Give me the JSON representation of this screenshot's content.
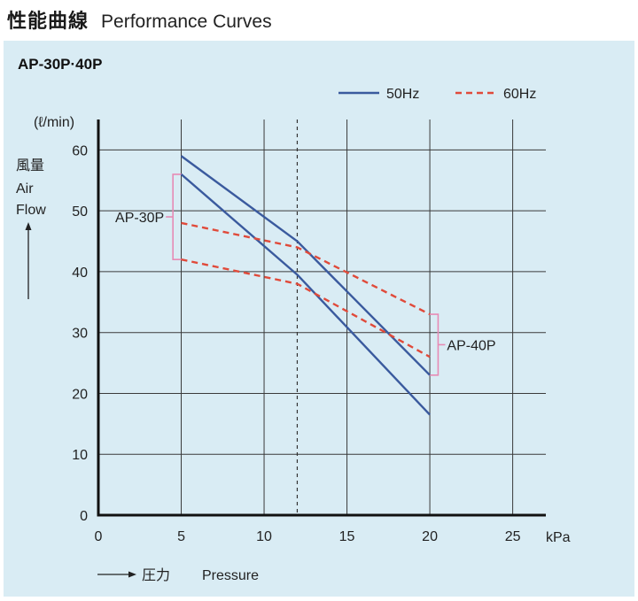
{
  "header": {
    "title_jp": "性能曲線",
    "title_en": "Performance Curves"
  },
  "chart_data": {
    "type": "line",
    "title": "AP-30P·40P",
    "xlabel_jp": "圧力",
    "xlabel_en": "Pressure",
    "x_unit": "kPa",
    "ylabel_jp": "風量",
    "ylabel_en_line1": "Air",
    "ylabel_en_line2": "Flow",
    "y_unit": "(ℓ/min)",
    "xlim": [
      0,
      27
    ],
    "ylim": [
      0,
      65
    ],
    "x_ticks": [
      0,
      5,
      10,
      15,
      20,
      25
    ],
    "y_ticks": [
      0,
      10,
      20,
      30,
      40,
      50,
      60
    ],
    "reference_x": 12,
    "legend": {
      "items": [
        {
          "label": "50Hz",
          "color": "#3a5a9e",
          "style": "solid"
        },
        {
          "label": "60Hz",
          "color": "#e04a3a",
          "style": "dashed"
        }
      ],
      "position": "top-right"
    },
    "series": [
      {
        "name": "AP-40P 50Hz",
        "model": "AP-40P",
        "freq": "50Hz",
        "x": [
          5,
          12,
          20
        ],
        "y": [
          59,
          45,
          23
        ]
      },
      {
        "name": "AP-30P 50Hz",
        "model": "AP-30P",
        "freq": "50Hz",
        "x": [
          5,
          12,
          20
        ],
        "y": [
          56,
          39.5,
          16.5
        ]
      },
      {
        "name": "AP-40P 60Hz",
        "model": "AP-40P",
        "freq": "60Hz",
        "x": [
          5,
          12,
          20
        ],
        "y": [
          48,
          44,
          33
        ]
      },
      {
        "name": "AP-30P 60Hz",
        "model": "AP-30P",
        "freq": "60Hz",
        "x": [
          5,
          12,
          20
        ],
        "y": [
          42,
          38,
          26
        ]
      }
    ],
    "annotations": [
      {
        "label": "AP-30P",
        "x": 4.5,
        "y_range": [
          42,
          56
        ],
        "side": "left"
      },
      {
        "label": "AP-40P",
        "x": 20.5,
        "y_range": [
          23,
          33
        ],
        "side": "right"
      }
    ],
    "bracket_color": "#e78bb5"
  }
}
